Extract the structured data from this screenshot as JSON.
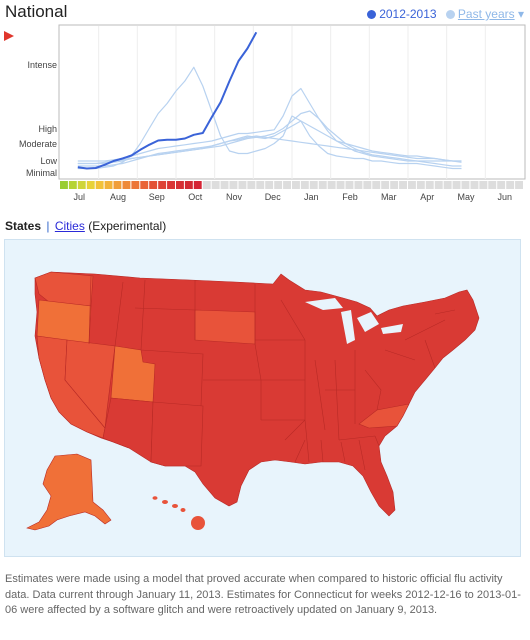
{
  "header": {
    "title": "National",
    "legend_current": "2012-2013",
    "legend_past": "Past years",
    "legend_past_arrow": "▾",
    "current_color": "#3a63d8",
    "past_color": "#b8d2f0"
  },
  "chart_data": {
    "type": "line",
    "x_tick_labels": [
      "Jul",
      "Aug",
      "Sep",
      "Oct",
      "Nov",
      "Dec",
      "Jan",
      "Feb",
      "Mar",
      "Apr",
      "May",
      "Jun"
    ],
    "y_level_labels": [
      "Intense",
      "High",
      "Moderate",
      "Low",
      "Minimal"
    ],
    "current_season": {
      "name": "2012-2013",
      "values": [
        1.35,
        1.3,
        1.32,
        1.45,
        1.6,
        1.7,
        1.82,
        2.05,
        2.25,
        2.42,
        2.45,
        2.45,
        2.5,
        2.65,
        2.72,
        3.35,
        3.95,
        4.8,
        5.6,
        6.1,
        6.75
      ]
    },
    "past_seasons": [
      {
        "values": [
          1.3,
          1.3,
          1.3,
          1.35,
          1.4,
          1.55,
          1.8,
          2.3,
          2.9,
          3.5,
          3.9,
          4.4,
          4.8,
          5.35,
          4.6,
          3.6,
          2.6,
          2.0,
          1.9,
          1.9,
          2.0,
          2.1,
          2.3,
          2.6,
          3.4,
          3.2,
          2.6,
          2.2,
          1.9,
          1.8,
          1.75,
          1.7,
          1.7,
          1.6,
          1.6,
          1.55,
          1.5,
          1.5,
          1.5,
          1.45,
          1.4,
          1.35,
          1.3,
          1.3
        ]
      },
      {
        "values": [
          1.6,
          1.6,
          1.6,
          1.6,
          1.65,
          1.7,
          1.8,
          1.9,
          2.0,
          2.1,
          2.15,
          2.2,
          2.25,
          2.3,
          2.35,
          2.4,
          2.5,
          2.6,
          2.7,
          2.7,
          2.75,
          2.8,
          2.85,
          3.4,
          4.2,
          4.5,
          3.9,
          3.3,
          2.8,
          2.4,
          2.2,
          2.0,
          1.9,
          1.8,
          1.75,
          1.7,
          1.65,
          1.6,
          1.6,
          1.6,
          1.6,
          1.6,
          1.6,
          1.6
        ]
      },
      {
        "values": [
          1.4,
          1.4,
          1.4,
          1.4,
          1.45,
          1.5,
          1.6,
          1.7,
          1.8,
          1.85,
          1.9,
          1.95,
          2.0,
          2.05,
          2.1,
          2.15,
          2.2,
          2.3,
          2.4,
          2.5,
          2.55,
          2.6,
          2.7,
          2.9,
          3.2,
          3.5,
          3.6,
          3.3,
          2.9,
          2.6,
          2.3,
          2.1,
          1.95,
          1.85,
          1.8,
          1.75,
          1.7,
          1.65,
          1.6,
          1.55,
          1.5,
          1.45,
          1.4,
          1.4
        ]
      },
      {
        "values": [
          1.5,
          1.5,
          1.5,
          1.55,
          1.6,
          1.65,
          1.7,
          1.75,
          1.8,
          1.85,
          1.9,
          1.95,
          2.0,
          2.05,
          2.1,
          2.2,
          2.3,
          2.4,
          2.5,
          2.6,
          2.55,
          2.5,
          2.6,
          2.8,
          3.0,
          3.2,
          3.0,
          2.8,
          2.6,
          2.4,
          2.3,
          2.2,
          2.1,
          2.0,
          1.95,
          1.9,
          1.85,
          1.8,
          1.8,
          1.75,
          1.7,
          1.65,
          1.6,
          1.6
        ]
      },
      {
        "values": [
          1.5,
          1.5,
          1.5,
          1.5,
          1.55,
          1.6,
          1.7,
          1.75,
          1.8,
          1.9,
          1.95,
          2.0,
          2.05,
          2.1,
          2.15,
          2.2,
          2.3,
          2.4,
          2.45,
          2.55,
          2.6,
          2.55,
          2.5,
          2.45,
          2.4,
          2.35,
          2.3,
          2.25,
          2.2,
          2.15,
          2.1,
          2.05,
          2.0,
          1.95,
          1.9,
          1.85,
          1.8,
          1.75,
          1.7,
          1.7,
          1.7,
          1.65,
          1.6,
          1.55
        ]
      }
    ],
    "activity_bar_colors": [
      "#9acd32",
      "#b5d334",
      "#cfd53a",
      "#e8d23a",
      "#f2c23a",
      "#f2b33a",
      "#f09e3a",
      "#ee8a39",
      "#ec7638",
      "#e96437",
      "#e35236",
      "#de4336",
      "#da3535",
      "#d62f34",
      "#d22a33",
      "#d52535"
    ],
    "activity_bar_empty_color": "#dddddd"
  },
  "tabs": {
    "states": "States",
    "separator": "|",
    "cities": "Cities",
    "experimental": " (Experimental)"
  },
  "map": {
    "background": "#e8f4fc",
    "color_intense": "#d93a34",
    "color_high": "#e8533a",
    "color_moderate": "#f07038"
  },
  "footer": {
    "text": "Estimates were made using a model that proved accurate when compared to historic official flu activity data. Data current through January 11, 2013. Estimates for Connecticut for weeks 2012-12-16 to 2013-01-06 were affected by a software glitch and were retroactively updated on January 9, 2013."
  }
}
